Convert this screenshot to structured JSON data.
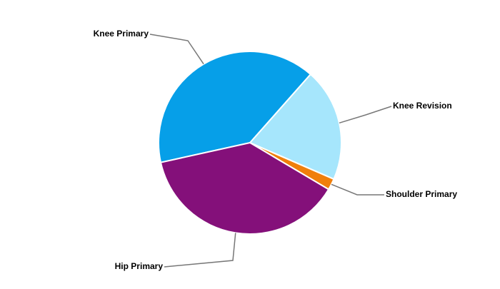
{
  "chart_data": {
    "type": "pie",
    "categories": [
      "Knee Primary",
      "Knee Revision",
      "Shoulder Primary",
      "Hip Primary"
    ],
    "values": [
      40,
      20,
      2,
      38
    ],
    "colors": [
      "#069fe8",
      "#a6e6fc",
      "#f07f0b",
      "#84107a"
    ]
  }
}
